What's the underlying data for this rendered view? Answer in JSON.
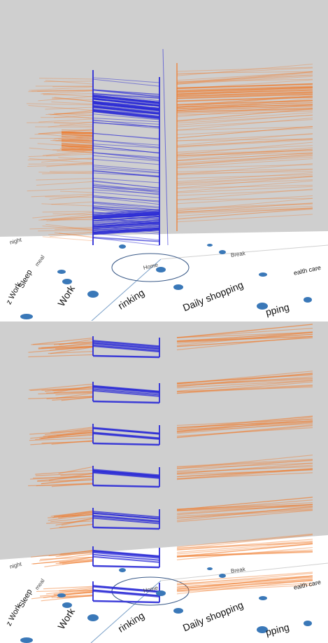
{
  "colors": {
    "background_sky": "#cfcfcf",
    "ground": "#ffffff",
    "blue_lines": "#2b2bd6",
    "orange_lines": "#f07a2a",
    "dots": "#3a78b8"
  },
  "panels": [
    {
      "id": "top",
      "axis_labels": {
        "work": "Work",
        "drinking": "rinking",
        "daily_shopping": "Daily shopping",
        "shopping": "pping",
        "sleep": "Sleep",
        "z_work": "z Work",
        "health_care": "ealth care"
      },
      "small_labels": [
        "night",
        "meal",
        "Break",
        "Home",
        "Sleep"
      ]
    },
    {
      "id": "bottom",
      "axis_labels": {
        "work": "Work",
        "drinking": "rinking",
        "daily_shopping": "Daily shopping",
        "shopping": "pping",
        "sleep": "Sleep",
        "z_work": "z Work",
        "health_care": "ealth care"
      },
      "small_labels": [
        "night",
        "meal",
        "Break",
        "Home",
        "Sleep"
      ]
    }
  ]
}
